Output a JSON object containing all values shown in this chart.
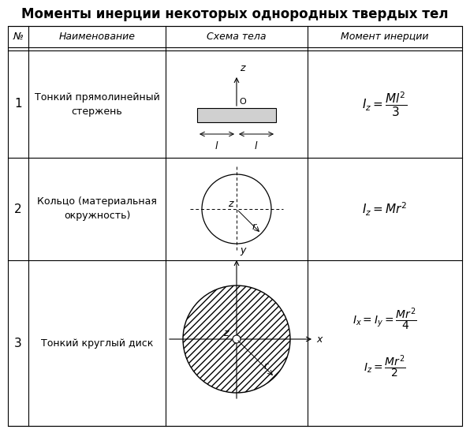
{
  "title": "Моменты инерции некоторых однородных твердых тел",
  "col_headers": [
    "№",
    "Наименование",
    "Схема тела",
    "Момент инерции"
  ],
  "row1_num": "1",
  "row1_name": "Тонкий прямолинейный\nстержень",
  "row1_formula": "$I_z = \\dfrac{Ml^2}{3}$",
  "row2_num": "2",
  "row2_name": "Кольцо (материальная\nокружность)",
  "row2_formula": "$I_z = Mr^2$",
  "row3_num": "3",
  "row3_name": "Тонкий круглый диск",
  "row3_formula_1": "$I_x = I_y = \\dfrac{Mr^2}{4}$",
  "row3_formula_2": "$I_z = \\dfrac{Mr^2}{2}$",
  "bg_color": "#ffffff",
  "border_color": "#000000"
}
